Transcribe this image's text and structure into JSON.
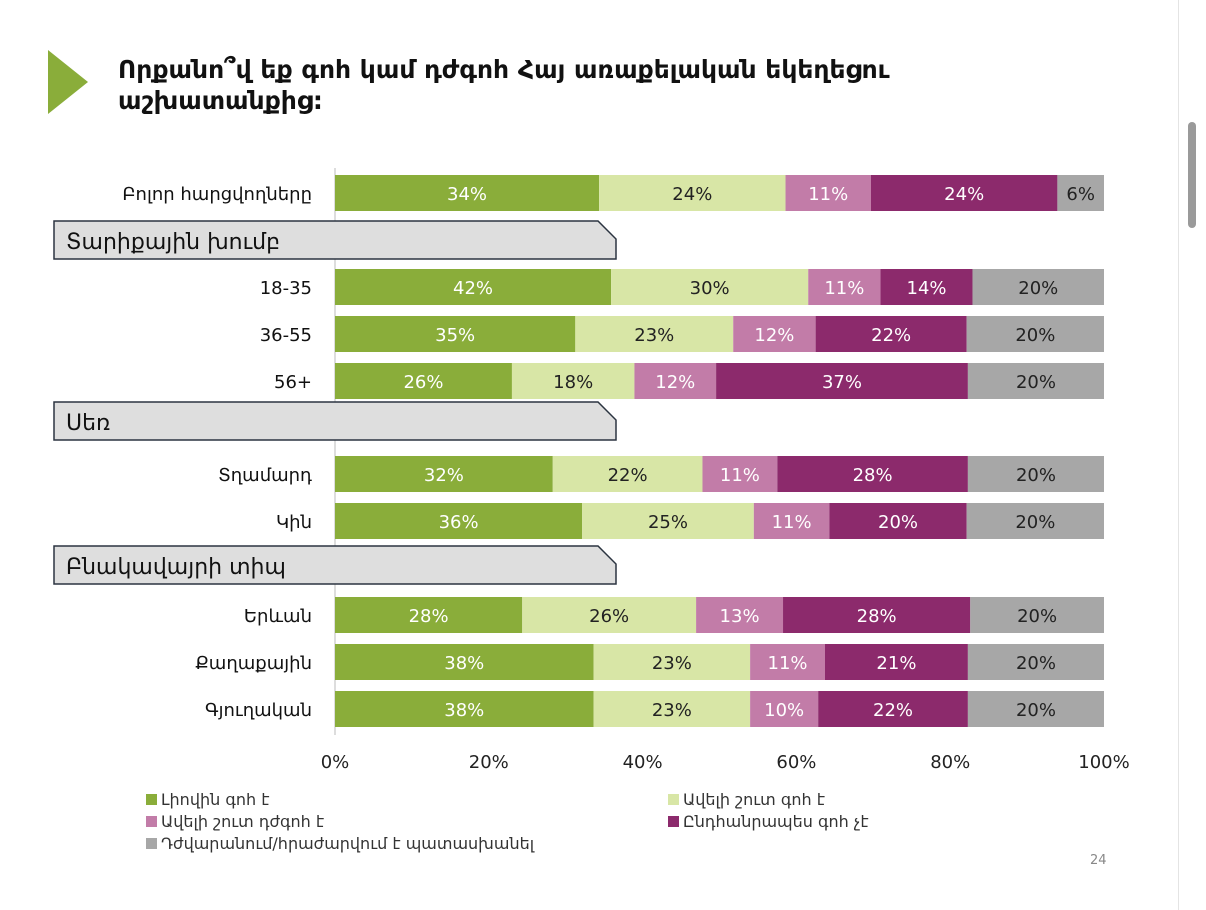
{
  "title": "Որքանո՞վ եք գոհ կամ դժգոհ Հայ առաքելական եկեղեցու աշխատանքից:",
  "page_number": "24",
  "chart_data": {
    "type": "bar",
    "orientation": "horizontal",
    "stacked": true,
    "normalized": true,
    "xlim": [
      0,
      100
    ],
    "x_ticks": [
      "0%",
      "20%",
      "40%",
      "60%",
      "80%",
      "100%"
    ],
    "legend_position": "bottom",
    "series": [
      {
        "name": "Լիովին գոհ է",
        "color": "#8aad3a"
      },
      {
        "name": "Ավելի շուտ գոհ է",
        "color": "#d8e6a6"
      },
      {
        "name": "Ավելի շուտ դժգոհ է",
        "color": "#c27ca8"
      },
      {
        "name": "Ընդհանրապես գոհ չէ",
        "color": "#8c2a6c"
      },
      {
        "name": "Դժվարանում/հրաժարվում է պատասխանել",
        "color": "#a7a7a7"
      }
    ],
    "rows": [
      {
        "kind": "bar",
        "label": "Բոլոր հարցվողները",
        "values": [
          34,
          24,
          11,
          24,
          6
        ]
      },
      {
        "kind": "group",
        "label": "Տարիքային խումբ"
      },
      {
        "kind": "bar",
        "label": "18-35",
        "values": [
          42,
          30,
          11,
          14,
          20
        ]
      },
      {
        "kind": "bar",
        "label": "36-55",
        "values": [
          35,
          23,
          12,
          22,
          20
        ]
      },
      {
        "kind": "bar",
        "label": "56+",
        "values": [
          26,
          18,
          12,
          37,
          20
        ]
      },
      {
        "kind": "group",
        "label": "Սեռ"
      },
      {
        "kind": "bar",
        "label": "Տղամարդ",
        "values": [
          32,
          22,
          11,
          28,
          20
        ]
      },
      {
        "kind": "bar",
        "label": "Կին",
        "values": [
          36,
          25,
          11,
          20,
          20
        ]
      },
      {
        "kind": "group",
        "label": "Բնակավայրի տիպ"
      },
      {
        "kind": "bar",
        "label": "Երևան",
        "values": [
          28,
          26,
          13,
          28,
          20
        ]
      },
      {
        "kind": "bar",
        "label": "Քաղաքային",
        "values": [
          38,
          23,
          11,
          21,
          20
        ]
      },
      {
        "kind": "bar",
        "label": "Գյուղական",
        "values": [
          38,
          23,
          10,
          22,
          20
        ]
      }
    ]
  }
}
